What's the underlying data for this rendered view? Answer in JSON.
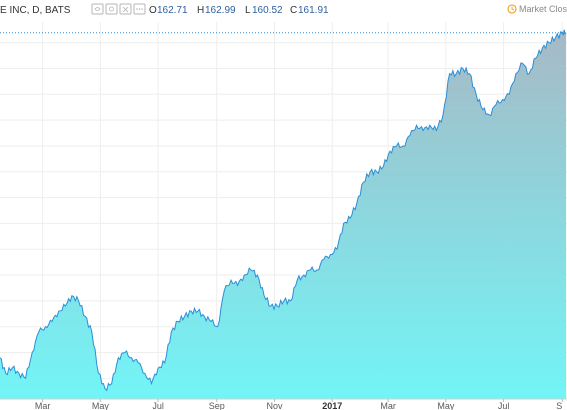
{
  "header": {
    "symbol_text": "E INC, D, BATS",
    "o_label": "O",
    "o_value": "162.71",
    "h_label": "H",
    "h_value": "162.99",
    "l_label": "L",
    "l_value": "160.52",
    "c_label": "C",
    "c_value": "161.91"
  },
  "status": {
    "text": "Market Clos",
    "icon": "clock-icon"
  },
  "colors": {
    "line": "#2a8fd6",
    "fill_top": "#a7b9c5",
    "fill_bottom": "#72f5f7",
    "last_price_line": "#2a8fd6",
    "status_icon": "#f39c12"
  },
  "chart_data": {
    "type": "area",
    "title": "",
    "xlabel": "",
    "ylabel": "",
    "ylim": [
      91,
      164
    ],
    "x_ticks": [
      {
        "label": "Mar",
        "date": "2016-03-01"
      },
      {
        "label": "May",
        "date": "2016-05-01"
      },
      {
        "label": "Jul",
        "date": "2016-07-01"
      },
      {
        "label": "Sep",
        "date": "2016-09-01"
      },
      {
        "label": "Nov",
        "date": "2016-11-01"
      },
      {
        "label": "2017",
        "date": "2017-01-01",
        "bold": true
      },
      {
        "label": "Mar",
        "date": "2017-03-01"
      },
      {
        "label": "May",
        "date": "2017-05-01"
      },
      {
        "label": "Jul",
        "date": "2017-07-01"
      },
      {
        "label": "S",
        "date": "2017-09-01"
      }
    ],
    "xlim": [
      "2016-01-16",
      "2017-09-06"
    ],
    "last_price": 161.91,
    "series": [
      {
        "x": [
          "2016-01-16",
          "2016-01-22",
          "2016-01-29",
          "2016-02-05",
          "2016-02-12",
          "2016-02-19",
          "2016-02-26",
          "2016-03-04",
          "2016-03-11",
          "2016-03-18",
          "2016-03-25",
          "2016-04-01",
          "2016-04-08",
          "2016-04-15",
          "2016-04-22",
          "2016-04-29",
          "2016-05-06",
          "2016-05-13",
          "2016-05-20",
          "2016-05-27",
          "2016-06-03",
          "2016-06-10",
          "2016-06-17",
          "2016-06-24",
          "2016-07-01",
          "2016-07-08",
          "2016-07-15",
          "2016-07-22",
          "2016-07-29",
          "2016-08-05",
          "2016-08-12",
          "2016-08-19",
          "2016-08-26",
          "2016-09-02",
          "2016-09-09",
          "2016-09-16",
          "2016-09-23",
          "2016-09-30",
          "2016-10-07",
          "2016-10-14",
          "2016-10-21",
          "2016-10-28",
          "2016-11-04",
          "2016-11-11",
          "2016-11-18",
          "2016-11-25",
          "2016-12-02",
          "2016-12-09",
          "2016-12-16",
          "2016-12-23",
          "2016-12-30",
          "2017-01-06",
          "2017-01-13",
          "2017-01-20",
          "2017-01-27",
          "2017-02-03",
          "2017-02-10",
          "2017-02-17",
          "2017-02-24",
          "2017-03-03",
          "2017-03-10",
          "2017-03-17",
          "2017-03-24",
          "2017-03-31",
          "2017-04-07",
          "2017-04-14",
          "2017-04-21",
          "2017-04-28",
          "2017-05-05",
          "2017-05-12",
          "2017-05-19",
          "2017-05-26",
          "2017-06-02",
          "2017-06-09",
          "2017-06-16",
          "2017-06-23",
          "2017-06-30",
          "2017-07-07",
          "2017-07-14",
          "2017-07-21",
          "2017-07-28",
          "2017-08-04",
          "2017-08-11",
          "2017-08-18",
          "2017-08-25",
          "2017-09-01",
          "2017-09-05"
        ],
        "values": [
          99,
          96,
          97,
          96,
          95,
          100,
          104,
          105,
          106,
          108,
          109,
          111,
          110,
          107,
          104,
          96,
          93,
          94,
          99,
          100,
          99,
          98,
          96,
          94,
          97,
          98,
          104,
          106,
          107,
          108,
          108,
          107,
          106,
          105,
          112,
          114,
          113,
          115,
          116,
          115,
          111,
          109,
          109,
          110,
          110,
          114,
          115,
          116,
          116,
          118,
          119,
          120,
          125,
          126,
          129,
          133,
          135,
          135,
          136,
          139,
          140,
          140,
          142,
          144,
          143,
          144,
          143,
          146,
          154,
          154,
          155,
          154,
          150,
          147,
          146,
          148,
          149,
          150,
          154,
          156,
          154,
          157,
          159,
          160,
          161,
          162,
          161.91
        ]
      }
    ]
  }
}
